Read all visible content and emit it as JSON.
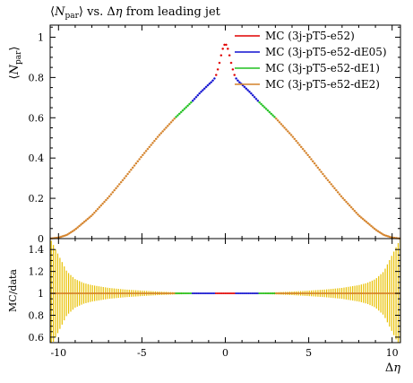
{
  "chart_data": [
    {
      "type": "scatter",
      "panel": "main",
      "title": "⟨N_par⟩ vs. Δη from leading jet",
      "title_parts": {
        "lbracket": "⟨",
        "n": "N",
        "sub": "par",
        "rbracket": "⟩",
        "rest": " vs. Δ",
        "eta": "η",
        "tail": " from leading jet"
      },
      "ylabel_parts": {
        "lbracket": "⟨",
        "n": "N",
        "sub": "par",
        "rbracket": "⟩"
      },
      "xlim": [
        -10.5,
        10.5
      ],
      "ylim": [
        0,
        1.06
      ],
      "yticks": [
        0,
        0.2,
        0.4,
        0.6,
        0.8,
        1
      ],
      "ytick_labels": [
        "0",
        "0.2",
        "0.4",
        "0.6",
        "0.8",
        "1"
      ],
      "legend_placement": "top-right",
      "series": [
        {
          "name": "MC (3j-pT5-e52)",
          "color": "#e00000",
          "x_range": [
            -0.6,
            0.6
          ]
        },
        {
          "name": "MC (3j-pT5-e52-dE05)",
          "color": "#1010d0",
          "x_range": [
            -2.0,
            -0.6
          ],
          "mirror": true
        },
        {
          "name": "MC (3j-pT5-e52-dE1)",
          "color": "#20c020",
          "x_range": [
            -3.0,
            -2.0
          ],
          "mirror": true
        },
        {
          "name": "MC (3j-pT5-e52-dE2)",
          "color": "#d4822a",
          "x_range": [
            -10.5,
            -3.0
          ],
          "mirror": true
        }
      ],
      "profile": {
        "x": [
          0.0,
          0.1,
          0.2,
          0.3,
          0.4,
          0.5,
          0.6,
          0.8,
          1.0,
          1.5,
          2.0,
          2.5,
          3.0,
          3.5,
          4.0,
          5.0,
          6.0,
          7.0,
          8.0,
          9.0,
          9.5,
          10.0,
          10.5
        ],
        "y": [
          0.97,
          0.955,
          0.93,
          0.89,
          0.855,
          0.825,
          0.8,
          0.78,
          0.765,
          0.725,
          0.68,
          0.64,
          0.6,
          0.555,
          0.51,
          0.41,
          0.305,
          0.205,
          0.115,
          0.045,
          0.018,
          0.005,
          0.0
        ]
      }
    },
    {
      "type": "scatter",
      "panel": "ratio",
      "ylabel": "MC/data",
      "xlabel_parts": {
        "delta": "Δ",
        "eta": "η"
      },
      "xlim": [
        -10.5,
        10.5
      ],
      "ylim": [
        0.55,
        1.5
      ],
      "yticks": [
        0.6,
        0.8,
        1,
        1.2,
        1.4
      ],
      "ytick_labels": [
        "0.6",
        "0.8",
        "1",
        "1.2",
        "1.4"
      ],
      "xticks": [
        -10,
        -5,
        0,
        5,
        10
      ],
      "xtick_labels": [
        "-10",
        "-5",
        "0",
        "5",
        "10"
      ],
      "ratio_value": 1.0,
      "error_band_color": "#e8c000",
      "error_band": {
        "abs_x": [
          0.0,
          1.0,
          2.0,
          3.0,
          4.0,
          5.0,
          6.0,
          7.0,
          8.0,
          8.5,
          9.0,
          9.5,
          10.0,
          10.5
        ],
        "half_width": [
          0.003,
          0.004,
          0.006,
          0.01,
          0.016,
          0.025,
          0.035,
          0.05,
          0.075,
          0.095,
          0.13,
          0.2,
          0.35,
          0.5
        ]
      }
    }
  ]
}
